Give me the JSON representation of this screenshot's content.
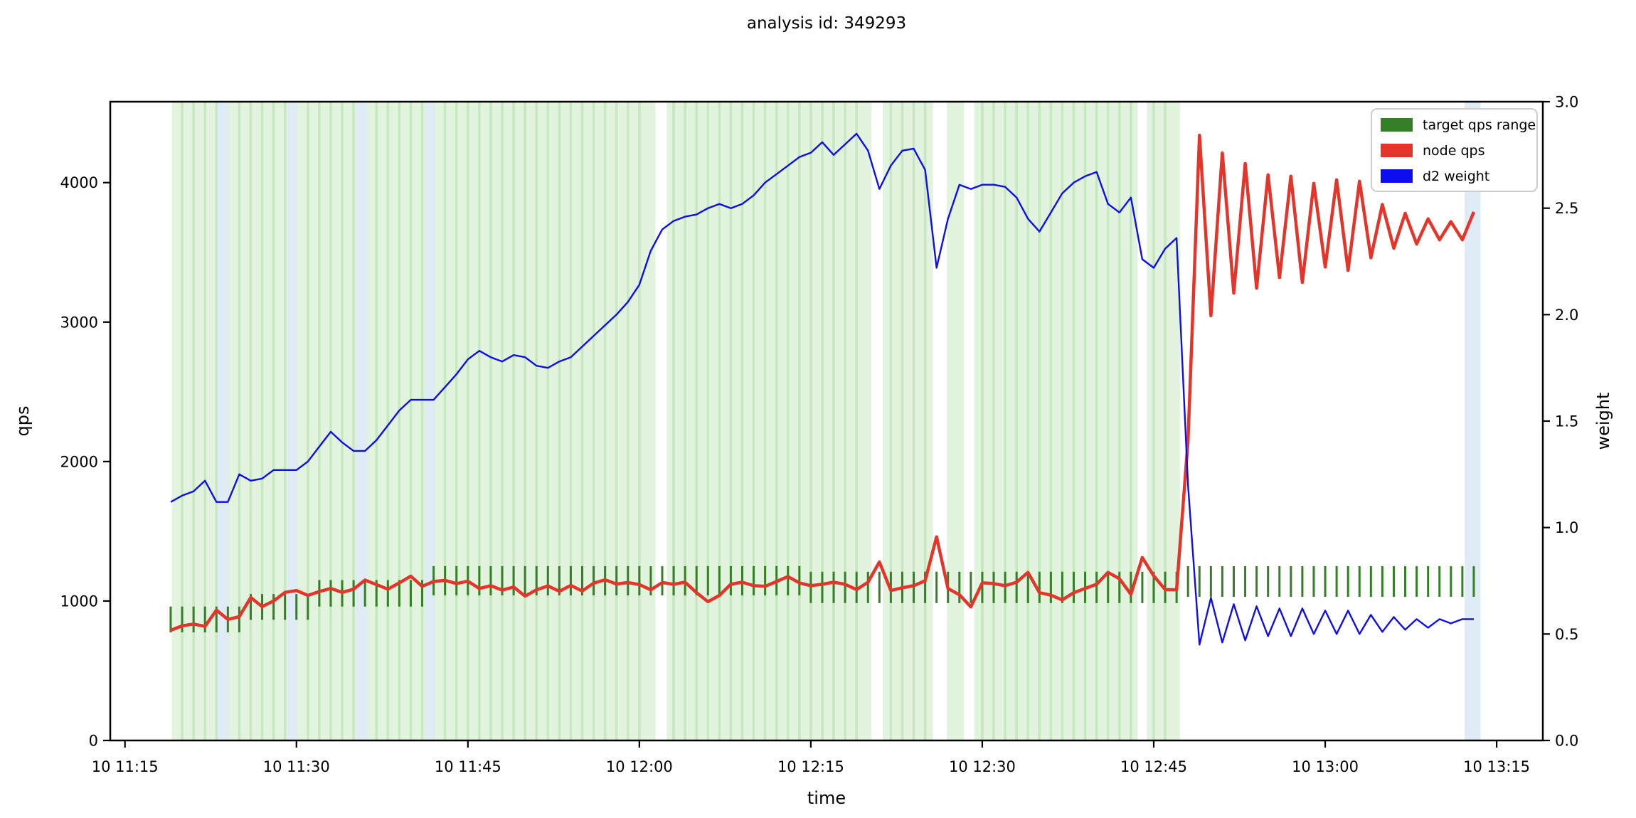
{
  "title": "analysis id: 349293",
  "chart_data": {
    "type": "line",
    "title": "analysis id: 349293",
    "xlabel": "time",
    "ylabel_left": "qps",
    "ylabel_right": "weight",
    "grid": false,
    "legend_position": "upper right",
    "legend": [
      {
        "label": "target qps range",
        "color": "#357f27",
        "kind": "vertical-range-ticks"
      },
      {
        "label": "node qps",
        "color": "#e5352b",
        "kind": "line"
      },
      {
        "label": "d2 weight",
        "color": "#0d0df0",
        "kind": "line"
      }
    ],
    "x_ticks": {
      "minutes": [
        0,
        15,
        30,
        45,
        60,
        75,
        90,
        105,
        120
      ],
      "labels": [
        "10 11:15",
        "10 11:30",
        "10 11:45",
        "10 12:00",
        "10 12:15",
        "10 12:30",
        "10 12:45",
        "10 13:00",
        "10 13:15"
      ]
    },
    "ylim_left": [
      0,
      4580
    ],
    "yticks_left": {
      "values": [
        0,
        1000,
        2000,
        3000,
        4000
      ],
      "labels": [
        "0",
        "1000",
        "2000",
        "3000",
        "4000"
      ]
    },
    "ylim_right": [
      0.0,
      3.0
    ],
    "yticks_right": {
      "values": [
        0.0,
        0.5,
        1.0,
        1.5,
        2.0,
        2.5,
        3.0
      ],
      "labels": [
        "0.0",
        "0.5",
        "1.0",
        "1.5",
        "2.0",
        "2.5",
        "3.0"
      ]
    },
    "x_start_min": 4,
    "x_end_min": 118,
    "x_step_min": 1,
    "node_qps": [
      790,
      822,
      835,
      818,
      935,
      868,
      888,
      1025,
      960,
      1000,
      1062,
      1075,
      1040,
      1068,
      1090,
      1062,
      1085,
      1150,
      1118,
      1085,
      1130,
      1178,
      1105,
      1140,
      1148,
      1125,
      1142,
      1090,
      1110,
      1078,
      1100,
      1035,
      1080,
      1108,
      1070,
      1112,
      1072,
      1128,
      1152,
      1122,
      1132,
      1118,
      1080,
      1132,
      1120,
      1135,
      1060,
      995,
      1040,
      1120,
      1135,
      1110,
      1105,
      1140,
      1175,
      1130,
      1110,
      1120,
      1135,
      1120,
      1082,
      1135,
      1280,
      1075,
      1095,
      1110,
      1145,
      1460,
      1090,
      1045,
      958,
      1130,
      1125,
      1110,
      1135,
      1205,
      1060,
      1042,
      1008,
      1060,
      1090,
      1120,
      1205,
      1160,
      1048,
      1312,
      1180,
      1082,
      1080,
      2150,
      4340,
      3046,
      4213,
      3208,
      4137,
      3243,
      4056,
      3319,
      4046,
      3284,
      3995,
      3395,
      4020,
      3370,
      4010,
      3461,
      3843,
      3530,
      3780,
      3560,
      3740,
      3590,
      3720,
      3590,
      3790
    ],
    "d2_weight": [
      1.12,
      1.15,
      1.17,
      1.22,
      1.12,
      1.12,
      1.25,
      1.22,
      1.23,
      1.27,
      1.27,
      1.27,
      1.31,
      1.38,
      1.45,
      1.4,
      1.36,
      1.36,
      1.41,
      1.48,
      1.55,
      1.6,
      1.6,
      1.6,
      1.66,
      1.72,
      1.79,
      1.83,
      1.8,
      1.78,
      1.81,
      1.8,
      1.76,
      1.75,
      1.78,
      1.8,
      1.85,
      1.9,
      1.95,
      2.0,
      2.06,
      2.14,
      2.3,
      2.4,
      2.44,
      2.46,
      2.47,
      2.5,
      2.52,
      2.5,
      2.52,
      2.56,
      2.62,
      2.66,
      2.7,
      2.74,
      2.76,
      2.81,
      2.75,
      2.8,
      2.85,
      2.77,
      2.59,
      2.7,
      2.77,
      2.78,
      2.68,
      2.22,
      2.45,
      2.61,
      2.59,
      2.61,
      2.61,
      2.6,
      2.55,
      2.45,
      2.39,
      2.48,
      2.57,
      2.62,
      2.65,
      2.67,
      2.52,
      2.48,
      2.55,
      2.26,
      2.22,
      2.31,
      2.36,
      1.2,
      0.45,
      0.67,
      0.46,
      0.64,
      0.47,
      0.63,
      0.49,
      0.62,
      0.49,
      0.62,
      0.5,
      0.61,
      0.5,
      0.61,
      0.5,
      0.59,
      0.51,
      0.58,
      0.52,
      0.57,
      0.53,
      0.57,
      0.55,
      0.57,
      0.57
    ],
    "target_qps_range_segments": [
      {
        "from_min": 4,
        "to_min": 10,
        "lo": 775,
        "hi": 960
      },
      {
        "from_min": 11,
        "to_min": 16,
        "lo": 865,
        "hi": 1050
      },
      {
        "from_min": 17,
        "to_min": 26,
        "lo": 960,
        "hi": 1150
      },
      {
        "from_min": 27,
        "to_min": 59,
        "lo": 1040,
        "hi": 1250
      },
      {
        "from_min": 60,
        "to_min": 92,
        "lo": 985,
        "hi": 1210
      },
      {
        "from_min": 93,
        "to_min": 118,
        "lo": 1030,
        "hi": 1250
      }
    ],
    "background": {
      "green_spans_min": [
        [
          4.1,
          46.4
        ],
        [
          47.4,
          65.3
        ],
        [
          66.3,
          70.7
        ],
        [
          71.9,
          73.4
        ],
        [
          74.3,
          88.6
        ],
        [
          89.4,
          92.3
        ]
      ],
      "blue_spans_min": [
        [
          8.1,
          9.1
        ],
        [
          14.2,
          15.1
        ],
        [
          20.2,
          21.2
        ],
        [
          26.2,
          27.1
        ],
        [
          117.2,
          118.6
        ]
      ]
    },
    "colors": {
      "node_qps": "#e5352b",
      "d2_weight": "#0d0df0",
      "target_green": "#357f27",
      "band_green": "#e2f4de",
      "band_green_stripe": "#c7e8c1",
      "band_blue": "#dfecf5",
      "axis": "#000000",
      "legend_border": "#cccccc",
      "qps_label": "#e5352b",
      "weight_label": "#0d0df0"
    }
  }
}
